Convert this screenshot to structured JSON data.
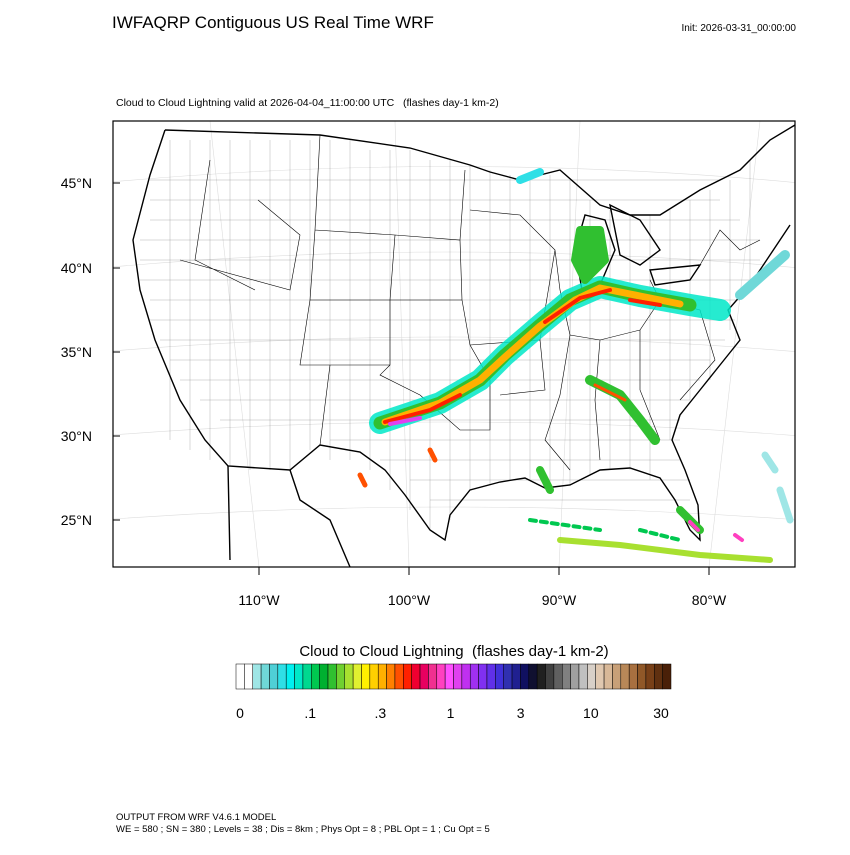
{
  "header": {
    "title": "IWFAQRP Contiguous US Real Time WRF",
    "init": "Init: 2026-03-31_00:00:00"
  },
  "map": {
    "subtitle": "Cloud to Cloud Lightning valid at 2026-04-04_11:00:00 UTC   (flashes day-1 km-2)",
    "lat_labels": [
      "45°N",
      "40°N",
      "35°N",
      "30°N",
      "25°N"
    ],
    "lon_labels": [
      "110°W",
      "100°W",
      "90°W",
      "80°W"
    ]
  },
  "colorbar": {
    "title": "Cloud to Cloud Lightning  (flashes day-1 km-2)",
    "labels": [
      "0",
      ".1",
      ".3",
      "1",
      "3",
      "10",
      "30"
    ],
    "colors": [
      "#ffffff",
      "#ffffff",
      "#9fe6e6",
      "#6fd8d8",
      "#4fcfd6",
      "#2fdfe6",
      "#00f0f0",
      "#00e8c8",
      "#00d890",
      "#00c850",
      "#00b030",
      "#30c030",
      "#70d030",
      "#a8e030",
      "#e0f030",
      "#fff000",
      "#ffd000",
      "#ffb000",
      "#ff8000",
      "#ff5000",
      "#ff2000",
      "#f00030",
      "#e80060",
      "#f03090",
      "#ff40c0",
      "#ff50ff",
      "#e040f0",
      "#c030f0",
      "#a030f0",
      "#8030f0",
      "#6030e8",
      "#4030d8",
      "#3030b0",
      "#202090",
      "#101060",
      "#101030",
      "#202020",
      "#404040",
      "#606060",
      "#808080",
      "#a0a0a0",
      "#c0c0c0",
      "#d8d0c8",
      "#e0c8b0",
      "#d8b898",
      "#c8a078",
      "#b88858",
      "#a87040",
      "#905828",
      "#784018",
      "#603010",
      "#4a2008"
    ]
  },
  "footer": {
    "line1": "OUTPUT FROM WRF V4.6.1 MODEL",
    "line2": "WE = 580 ; SN = 380 ; Levels = 38 ; Dis = 8km ; Phys Opt = 8 ; PBL Opt = 1 ; Cu Opt = 5"
  }
}
